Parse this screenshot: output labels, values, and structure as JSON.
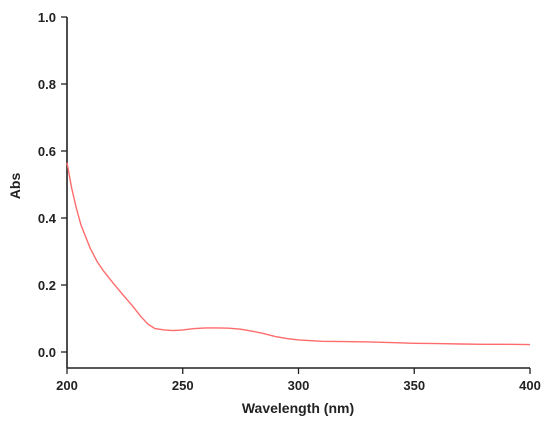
{
  "chart_data": {
    "type": "line",
    "title": "",
    "xlabel": "Wavelength (nm)",
    "ylabel": "Abs",
    "xlim": [
      200,
      400
    ],
    "ylim": [
      0.0,
      1.0
    ],
    "xticks": [
      200,
      250,
      300,
      350,
      400
    ],
    "yticks": [
      0.0,
      0.2,
      0.4,
      0.6,
      0.8,
      1.0
    ],
    "xtick_labels": [
      "200",
      "250",
      "300",
      "350",
      "400"
    ],
    "ytick_labels": [
      "0.0",
      "0.2",
      "0.4",
      "0.6",
      "0.8",
      "1.0"
    ],
    "grid": false,
    "series": [
      {
        "color": "#ff6b6b",
        "x": [
          200,
          202,
          204,
          206,
          208,
          210,
          213,
          216,
          220,
          224,
          228,
          232,
          235,
          238,
          242,
          246,
          250,
          255,
          260,
          265,
          270,
          275,
          280,
          285,
          290,
          295,
          300,
          310,
          320,
          330,
          340,
          350,
          360,
          370,
          380,
          390,
          400
        ],
        "y": [
          0.565,
          0.49,
          0.43,
          0.38,
          0.345,
          0.31,
          0.27,
          0.24,
          0.205,
          0.172,
          0.14,
          0.105,
          0.083,
          0.07,
          0.066,
          0.064,
          0.066,
          0.07,
          0.072,
          0.072,
          0.071,
          0.068,
          0.062,
          0.055,
          0.046,
          0.04,
          0.036,
          0.032,
          0.031,
          0.03,
          0.028,
          0.026,
          0.025,
          0.024,
          0.023,
          0.023,
          0.022
        ]
      }
    ]
  }
}
